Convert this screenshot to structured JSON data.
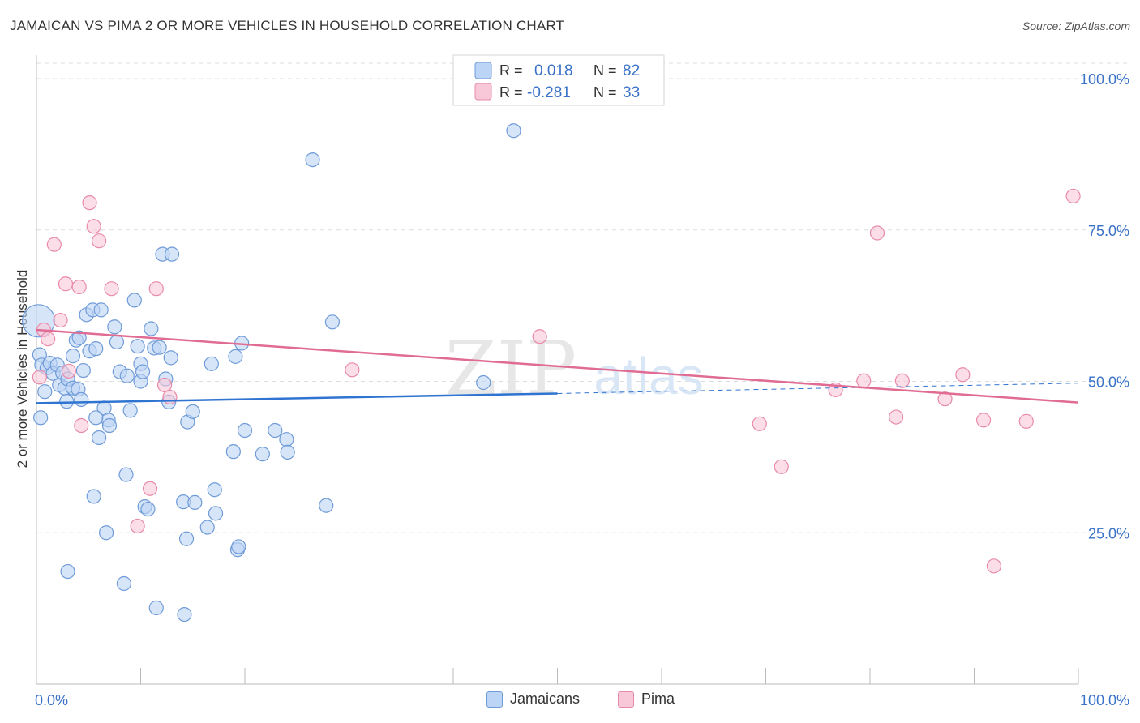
{
  "header": {
    "title": "JAMAICAN VS PIMA 2 OR MORE VEHICLES IN HOUSEHOLD CORRELATION CHART",
    "source": "Source: ZipAtlas.com"
  },
  "watermark": {
    "zip": "ZIP",
    "atlas": "atlas"
  },
  "colors": {
    "jamaicans_fill": "#bcd4f5",
    "jamaicans_stroke": "#6f9bd8",
    "jamaicans_line": "#2f74d0",
    "pima_fill": "#f8c8d8",
    "pima_stroke": "#e88aaa",
    "pima_line": "#e06c94",
    "axis_text": "#3a72c8",
    "grid": "#dddddd"
  },
  "legend_top": {
    "rows": [
      {
        "r_label": "R =",
        "r_value": "0.018",
        "n_label": "N =",
        "n_value": "82"
      },
      {
        "r_label": "R =",
        "r_value": "-0.281",
        "n_label": "N =",
        "n_value": "33"
      }
    ]
  },
  "legend_bottom": {
    "items": [
      "Jamaicans",
      "Pima"
    ]
  },
  "chart_data": {
    "type": "scatter",
    "title": "JAMAICAN VS PIMA 2 OR MORE VEHICLES IN HOUSEHOLD CORRELATION CHART",
    "xlabel": "",
    "ylabel": "2 or more Vehicles in Household",
    "xlim": [
      0,
      100
    ],
    "ylim": [
      0,
      105
    ],
    "x_tick_labels": [
      {
        "value": 0,
        "label": "0.0%"
      },
      {
        "value": 100,
        "label": "100.0%"
      }
    ],
    "y_tick_labels": [
      {
        "value": 25,
        "label": "25.0%"
      },
      {
        "value": 50,
        "label": "50.0%"
      },
      {
        "value": 75,
        "label": "75.0%"
      },
      {
        "value": 100,
        "label": "100.0%"
      }
    ],
    "x_minor_ticks": [
      0,
      10,
      20,
      30,
      40,
      50,
      60,
      70,
      80,
      90,
      100
    ],
    "grid": true,
    "legend_position": "top-center",
    "series": [
      {
        "name": "Jamaicans",
        "R": 0.018,
        "N": 82,
        "trend": {
          "x": [
            0,
            50
          ],
          "y": [
            46.4,
            48.0
          ]
        },
        "trend_dashed": {
          "x": [
            50,
            100
          ],
          "y": [
            48.0,
            49.7
          ]
        },
        "points": [
          [
            0.2,
            60.0
          ],
          [
            0.3,
            54.4
          ],
          [
            0.5,
            52.7
          ],
          [
            0.8,
            48.3
          ],
          [
            1.0,
            52.2
          ],
          [
            1.3,
            53.0
          ],
          [
            1.6,
            51.3
          ],
          [
            2.0,
            52.7
          ],
          [
            2.2,
            49.4
          ],
          [
            2.5,
            51.4
          ],
          [
            2.7,
            48.9
          ],
          [
            3.0,
            18.6
          ],
          [
            3.0,
            50.4
          ],
          [
            3.5,
            48.9
          ],
          [
            3.5,
            54.2
          ],
          [
            3.8,
            56.8
          ],
          [
            4.0,
            48.7
          ],
          [
            4.1,
            57.2
          ],
          [
            4.3,
            47.0
          ],
          [
            4.5,
            51.8
          ],
          [
            4.8,
            61.0
          ],
          [
            5.1,
            55.0
          ],
          [
            5.4,
            61.8
          ],
          [
            5.5,
            31.0
          ],
          [
            5.7,
            55.4
          ],
          [
            6.0,
            40.7
          ],
          [
            6.2,
            61.8
          ],
          [
            6.5,
            45.6
          ],
          [
            6.7,
            25.0
          ],
          [
            6.9,
            43.6
          ],
          [
            7.0,
            42.7
          ],
          [
            7.5,
            59.0
          ],
          [
            7.7,
            56.5
          ],
          [
            8.0,
            51.6
          ],
          [
            8.4,
            16.6
          ],
          [
            8.6,
            34.6
          ],
          [
            8.7,
            50.9
          ],
          [
            9.0,
            45.2
          ],
          [
            9.4,
            63.4
          ],
          [
            9.7,
            55.8
          ],
          [
            10.0,
            52.9
          ],
          [
            10.0,
            50.0
          ],
          [
            10.2,
            51.6
          ],
          [
            10.4,
            29.3
          ],
          [
            10.7,
            28.9
          ],
          [
            11.0,
            58.7
          ],
          [
            11.3,
            55.5
          ],
          [
            11.5,
            12.6
          ],
          [
            11.8,
            55.6
          ],
          [
            12.1,
            71.0
          ],
          [
            12.4,
            50.4
          ],
          [
            12.7,
            46.6
          ],
          [
            12.9,
            53.9
          ],
          [
            13.0,
            71.0
          ],
          [
            14.1,
            30.1
          ],
          [
            14.2,
            11.5
          ],
          [
            14.4,
            24.0
          ],
          [
            14.5,
            43.3
          ],
          [
            15.2,
            30.0
          ],
          [
            16.4,
            25.9
          ],
          [
            16.8,
            52.9
          ],
          [
            17.1,
            32.1
          ],
          [
            17.2,
            28.2
          ],
          [
            18.9,
            38.4
          ],
          [
            19.1,
            54.1
          ],
          [
            19.3,
            22.2
          ],
          [
            19.4,
            22.7
          ],
          [
            19.7,
            56.3
          ],
          [
            20.0,
            41.9
          ],
          [
            21.7,
            38.0
          ],
          [
            22.9,
            41.9
          ],
          [
            24.0,
            40.4
          ],
          [
            24.1,
            38.3
          ],
          [
            26.5,
            86.6
          ],
          [
            27.8,
            29.5
          ],
          [
            28.4,
            59.8
          ],
          [
            42.9,
            49.8
          ],
          [
            45.8,
            91.4
          ],
          [
            0.4,
            44.0
          ],
          [
            2.9,
            46.7
          ],
          [
            5.7,
            44.0
          ],
          [
            15.0,
            45.0
          ]
        ]
      },
      {
        "name": "Pima",
        "R": -0.281,
        "N": 33,
        "trend": {
          "x": [
            0,
            100
          ],
          "y": [
            58.5,
            46.5
          ]
        },
        "points": [
          [
            0.3,
            50.7
          ],
          [
            0.7,
            58.5
          ],
          [
            1.1,
            57.0
          ],
          [
            1.7,
            72.6
          ],
          [
            2.3,
            60.1
          ],
          [
            2.8,
            66.1
          ],
          [
            3.1,
            51.7
          ],
          [
            4.1,
            65.6
          ],
          [
            4.3,
            42.7
          ],
          [
            5.1,
            79.5
          ],
          [
            5.5,
            75.6
          ],
          [
            6.0,
            73.2
          ],
          [
            7.2,
            65.3
          ],
          [
            10.9,
            32.3
          ],
          [
            9.7,
            26.1
          ],
          [
            11.5,
            65.3
          ],
          [
            12.3,
            49.4
          ],
          [
            12.8,
            47.4
          ],
          [
            30.3,
            51.9
          ],
          [
            48.3,
            57.4
          ],
          [
            69.4,
            43.0
          ],
          [
            71.5,
            35.9
          ],
          [
            76.7,
            48.6
          ],
          [
            79.4,
            50.1
          ],
          [
            80.7,
            74.5
          ],
          [
            82.5,
            44.1
          ],
          [
            83.1,
            50.1
          ],
          [
            87.2,
            47.1
          ],
          [
            88.9,
            51.1
          ],
          [
            90.9,
            43.6
          ],
          [
            91.9,
            19.5
          ],
          [
            95.0,
            43.4
          ],
          [
            99.5,
            80.6
          ]
        ]
      }
    ]
  }
}
